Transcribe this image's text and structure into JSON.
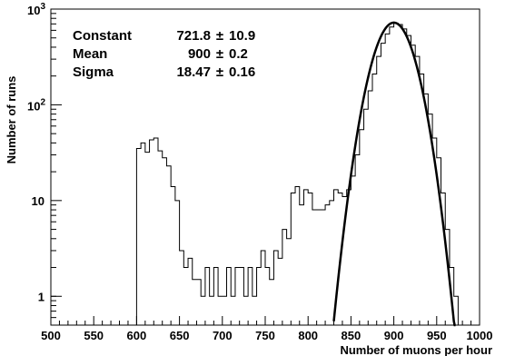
{
  "chart_data": {
    "type": "histogram",
    "xlabel": "Number of muons per hour",
    "ylabel": "Number of runs",
    "xlim": [
      500,
      1000
    ],
    "ylim": [
      0.5,
      1000
    ],
    "y_scale": "log",
    "grid": false,
    "x_ticks": [
      "500",
      "550",
      "600",
      "650",
      "700",
      "750",
      "800",
      "850",
      "900",
      "950",
      "1000"
    ],
    "y_ticks": [
      {
        "value": 1,
        "base": "1",
        "exp": ""
      },
      {
        "value": 10,
        "base": "10",
        "exp": ""
      },
      {
        "value": 100,
        "base": "10",
        "exp": "2"
      },
      {
        "value": 1000,
        "base": "10",
        "exp": "3"
      }
    ],
    "stats": [
      {
        "label": "Constant",
        "value": "721.8",
        "pm": "±",
        "error": "10.9"
      },
      {
        "label": "Mean",
        "value": "900",
        "pm": "±",
        "error": "0.2"
      },
      {
        "label": "Sigma",
        "value": "18.47",
        "pm": "±",
        "error": "0.16"
      }
    ],
    "fit": {
      "type": "gaussian",
      "constant": 721.8,
      "mean": 900,
      "sigma": 18.47,
      "x_range": [
        830,
        972
      ]
    },
    "histogram": {
      "bin_width": 5,
      "bins": [
        [
          600,
          35
        ],
        [
          605,
          40
        ],
        [
          610,
          32
        ],
        [
          615,
          43
        ],
        [
          620,
          45
        ],
        [
          625,
          33
        ],
        [
          630,
          28
        ],
        [
          635,
          23
        ],
        [
          640,
          14
        ],
        [
          645,
          10
        ],
        [
          650,
          3
        ],
        [
          655,
          2
        ],
        [
          660,
          2.5
        ],
        [
          665,
          1.5
        ],
        [
          670,
          1.5
        ],
        [
          675,
          1
        ],
        [
          680,
          2
        ],
        [
          685,
          1
        ],
        [
          690,
          2
        ],
        [
          695,
          1
        ],
        [
          700,
          1
        ],
        [
          705,
          2
        ],
        [
          710,
          1
        ],
        [
          715,
          2
        ],
        [
          720,
          2
        ],
        [
          725,
          1
        ],
        [
          730,
          2
        ],
        [
          735,
          1
        ],
        [
          740,
          2
        ],
        [
          745,
          3
        ],
        [
          750,
          2
        ],
        [
          755,
          1.5
        ],
        [
          760,
          3
        ],
        [
          765,
          2.5
        ],
        [
          770,
          5
        ],
        [
          775,
          4
        ],
        [
          780,
          12
        ],
        [
          785,
          14
        ],
        [
          790,
          9
        ],
        [
          795,
          13
        ],
        [
          800,
          12
        ],
        [
          805,
          8
        ],
        [
          810,
          8
        ],
        [
          815,
          8
        ],
        [
          820,
          9
        ],
        [
          825,
          10
        ],
        [
          830,
          13
        ],
        [
          835,
          12
        ],
        [
          840,
          11
        ],
        [
          845,
          13
        ],
        [
          850,
          18
        ],
        [
          855,
          30
        ],
        [
          860,
          55
        ],
        [
          865,
          90
        ],
        [
          870,
          140
        ],
        [
          875,
          210
        ],
        [
          880,
          320
        ],
        [
          885,
          440
        ],
        [
          890,
          550
        ],
        [
          895,
          650
        ],
        [
          900,
          710
        ],
        [
          905,
          690
        ],
        [
          910,
          620
        ],
        [
          915,
          530
        ],
        [
          920,
          420
        ],
        [
          925,
          320
        ],
        [
          930,
          210
        ],
        [
          935,
          130
        ],
        [
          940,
          80
        ],
        [
          945,
          45
        ],
        [
          950,
          28
        ],
        [
          955,
          12
        ],
        [
          960,
          5
        ],
        [
          965,
          2
        ],
        [
          970,
          1
        ]
      ]
    }
  }
}
